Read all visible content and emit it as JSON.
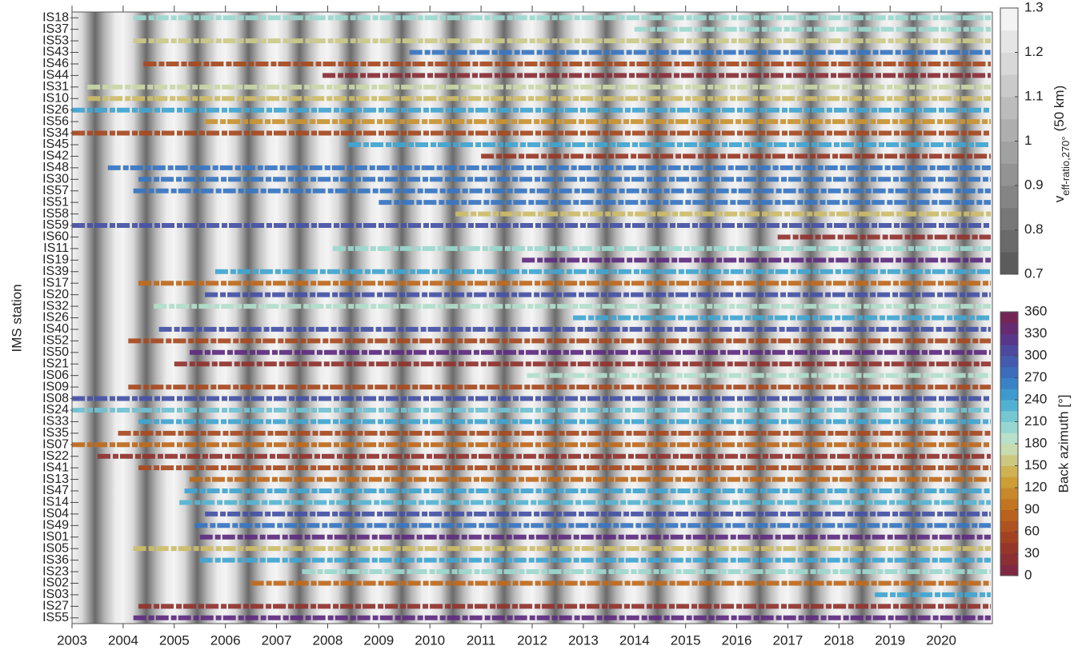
{
  "chart_data": {
    "type": "station-timeline",
    "ylabel": "IMS station",
    "xlim": [
      2003,
      2021
    ],
    "xticks": [
      2003,
      2004,
      2005,
      2006,
      2007,
      2008,
      2009,
      2010,
      2011,
      2012,
      2013,
      2014,
      2015,
      2016,
      2017,
      2018,
      2019,
      2020
    ],
    "stations": [
      "IS18",
      "IS37",
      "IS53",
      "IS43",
      "IS46",
      "IS44",
      "IS31",
      "IS10",
      "IS26",
      "IS56",
      "IS34",
      "IS45",
      "IS42",
      "IS48",
      "IS30",
      "IS57",
      "IS51",
      "IS58",
      "IS59",
      "IS60",
      "IS11",
      "IS19",
      "IS39",
      "IS17",
      "IS20",
      "IS32",
      "IS26",
      "IS40",
      "IS52",
      "IS50",
      "IS21",
      "IS06",
      "IS09",
      "IS08",
      "IS24",
      "IS33",
      "IS35",
      "IS07",
      "IS22",
      "IS41",
      "IS13",
      "IS47",
      "IS14",
      "IS04",
      "IS49",
      "IS01",
      "IS05",
      "IS36",
      "IS23",
      "IS02",
      "IS03",
      "IS27",
      "IS55"
    ],
    "start": [
      2004.2,
      2014,
      2004.2,
      2009.6,
      2004.4,
      2007.9,
      2003.3,
      2003.3,
      2003,
      2005.6,
      2003,
      2008.4,
      2011,
      2003.7,
      2004.3,
      2004.2,
      2009,
      2010.5,
      2003,
      2016.8,
      2008.1,
      2011.8,
      2005.8,
      2004.3,
      2005.6,
      2004.6,
      2012.8,
      2004.7,
      2004.1,
      2005.3,
      2005,
      2011.9,
      2004.1,
      2003,
      2003,
      2004.3,
      2003.9,
      2003,
      2003.5,
      2004.3,
      2005.3,
      2005.2,
      2005.1,
      2005.6,
      2005.4,
      2005.5,
      2004.2,
      2005.5,
      2007.5,
      2006.5,
      2018.7,
      2004.3,
      2004.2
    ],
    "azimuth": [
      200,
      200,
      160,
      270,
      60,
      20,
      170,
      150,
      240,
      120,
      60,
      240,
      40,
      270,
      270,
      270,
      270,
      150,
      300,
      30,
      200,
      330,
      240,
      90,
      300,
      190,
      240,
      300,
      60,
      330,
      30,
      190,
      60,
      300,
      220,
      240,
      60,
      90,
      30,
      60,
      90,
      240,
      230,
      300,
      270,
      330,
      150,
      240,
      200,
      90,
      240,
      30,
      330
    ],
    "veff_colorbar": {
      "label": "v",
      "label_sub": "eff-ratio,270°",
      "label_unit": "(50 km)",
      "lim": [
        0.7,
        1.3
      ],
      "ticks": [
        0.7,
        0.8,
        0.9,
        1,
        1.1,
        1.2,
        1.3
      ]
    },
    "azimuth_colorbar": {
      "label": "Back azimuth [°]",
      "lim": [
        0,
        360
      ],
      "ticks": [
        0,
        30,
        60,
        90,
        120,
        150,
        180,
        210,
        240,
        270,
        300,
        330,
        360
      ]
    }
  }
}
